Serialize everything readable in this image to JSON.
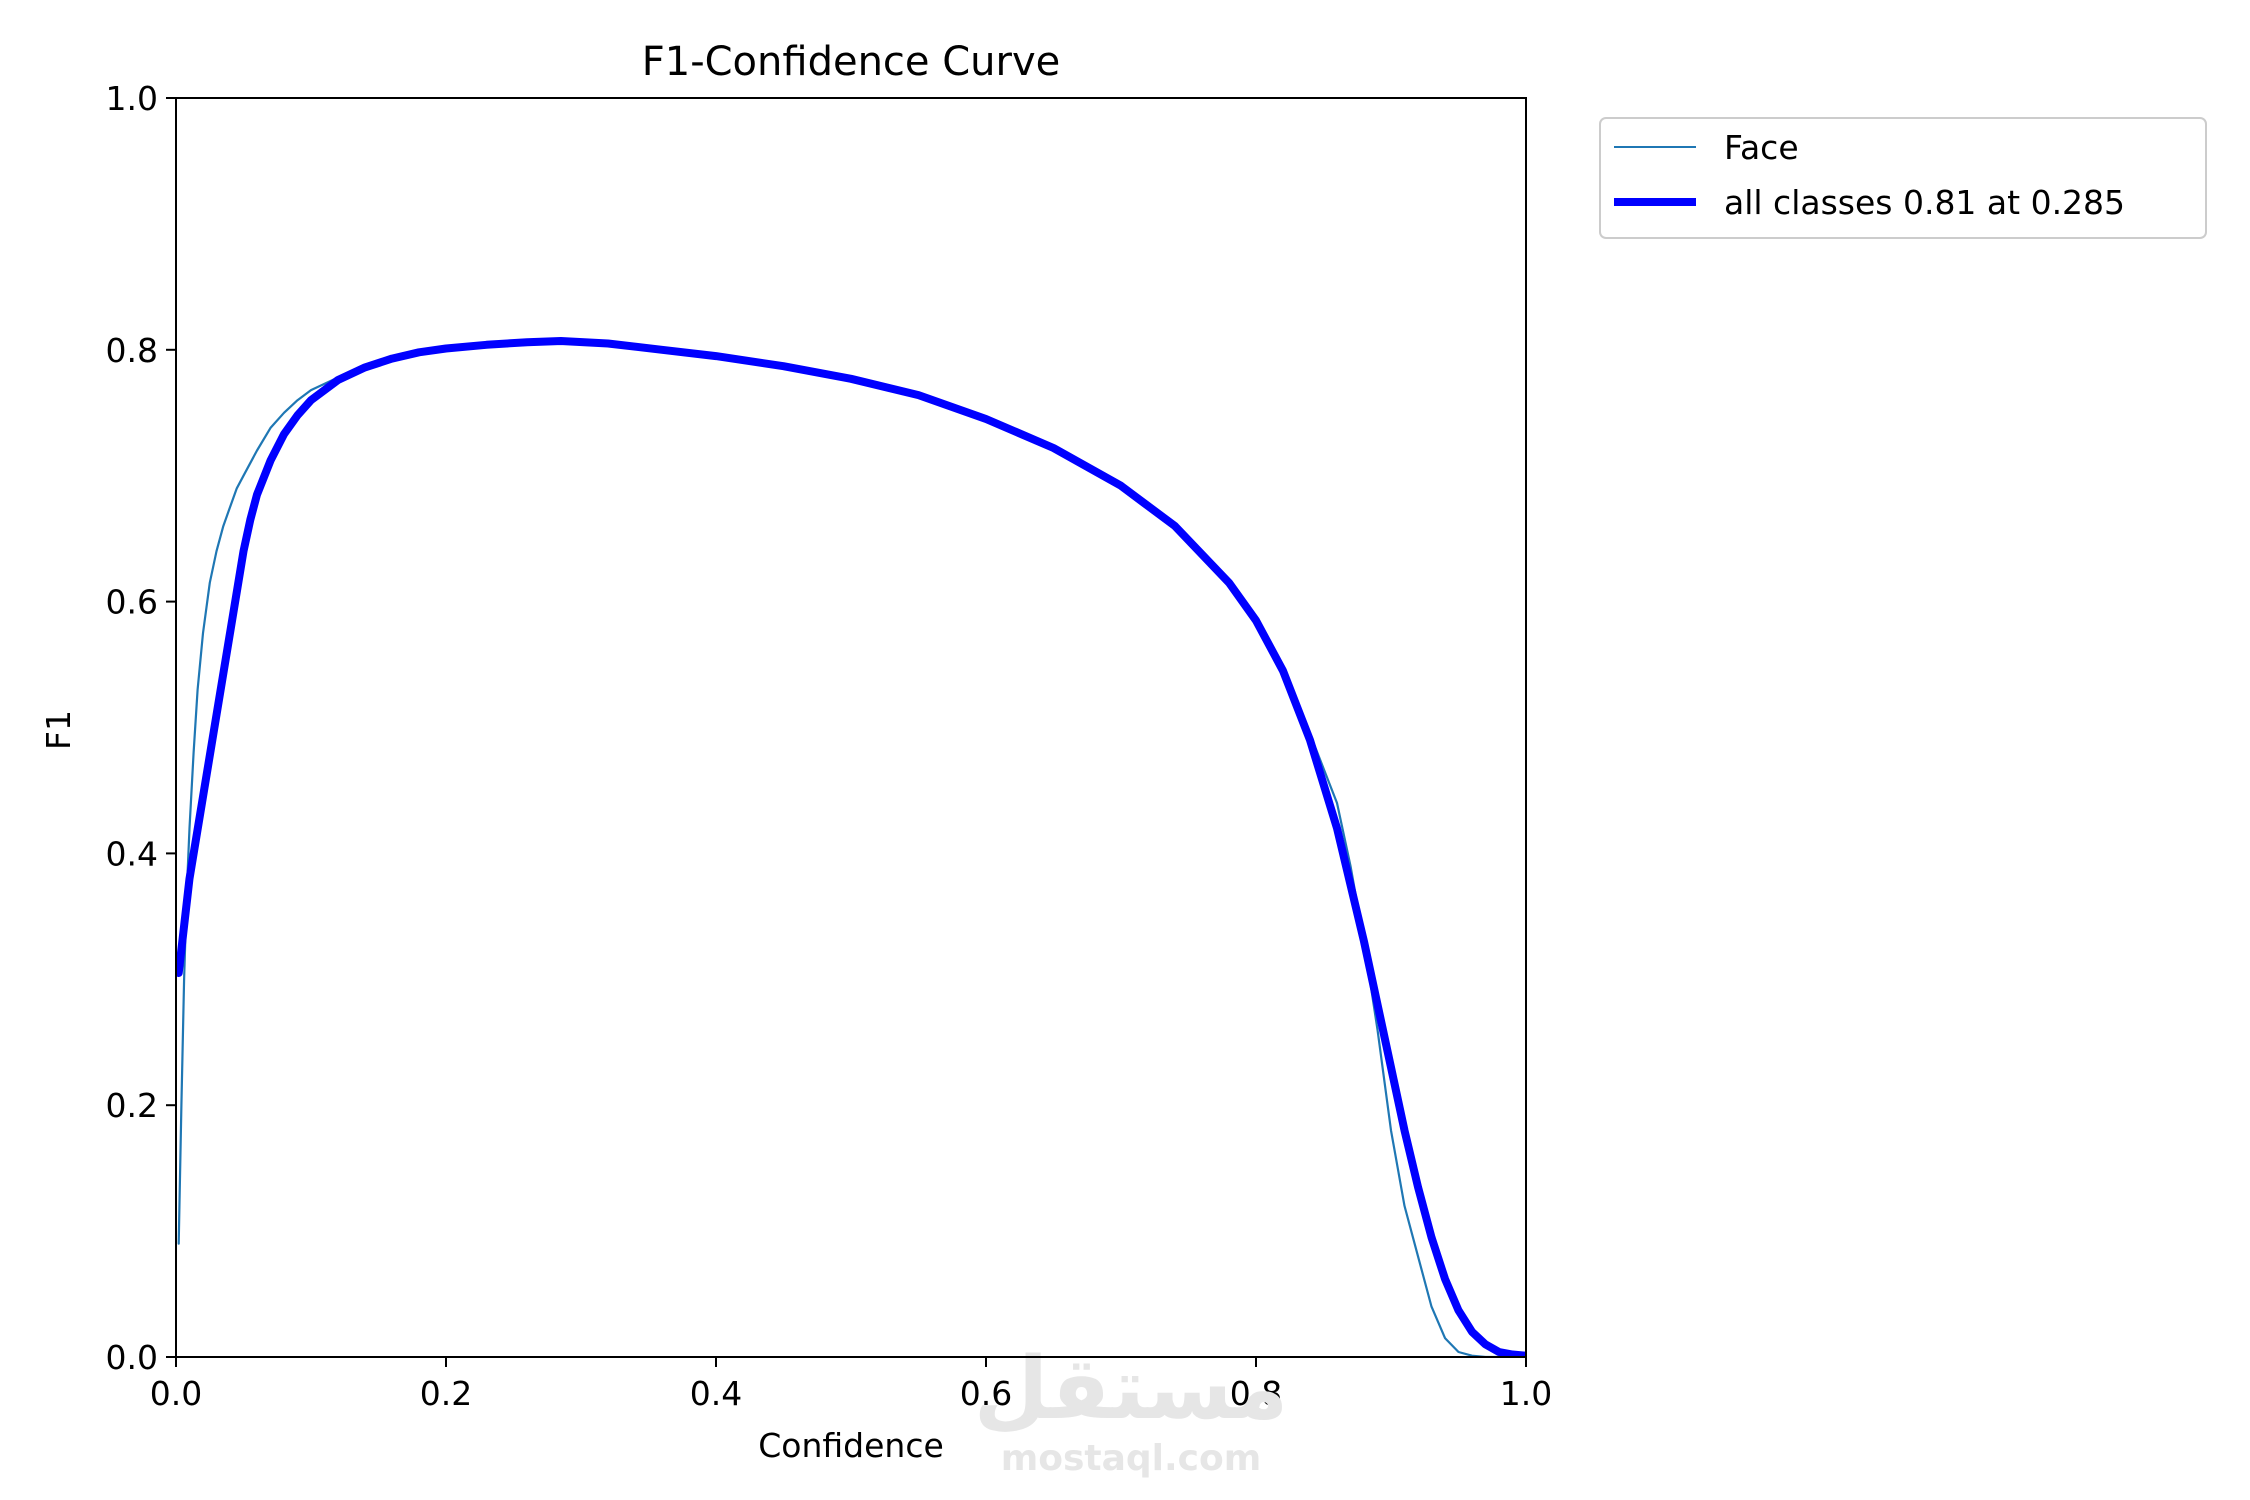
{
  "chart_data": {
    "type": "line",
    "title": "F1-Confidence Curve",
    "xlabel": "Confidence",
    "ylabel": "F1",
    "xlim": [
      0.0,
      1.0
    ],
    "ylim": [
      0.0,
      1.0
    ],
    "xticks": [
      "0.0",
      "0.2",
      "0.4",
      "0.6",
      "0.8",
      "1.0"
    ],
    "yticks": [
      "0.0",
      "0.2",
      "0.4",
      "0.6",
      "0.8",
      "1.0"
    ],
    "grid": false,
    "legend_position": "outside-top-right",
    "series": [
      {
        "name": "Face",
        "color": "#1f77b4",
        "style": "thin",
        "x": [
          0.002,
          0.004,
          0.006,
          0.008,
          0.01,
          0.013,
          0.016,
          0.02,
          0.025,
          0.03,
          0.035,
          0.04,
          0.045,
          0.05,
          0.06,
          0.07,
          0.08,
          0.09,
          0.1,
          0.12,
          0.14,
          0.16,
          0.18,
          0.2,
          0.23,
          0.26,
          0.285,
          0.32,
          0.36,
          0.4,
          0.45,
          0.5,
          0.55,
          0.6,
          0.65,
          0.7,
          0.74,
          0.78,
          0.8,
          0.82,
          0.84,
          0.86,
          0.87,
          0.88,
          0.89,
          0.9,
          0.91,
          0.92,
          0.93,
          0.94,
          0.95,
          0.96,
          0.97,
          0.98,
          0.99,
          1.0
        ],
        "y": [
          0.09,
          0.2,
          0.3,
          0.37,
          0.42,
          0.48,
          0.53,
          0.575,
          0.615,
          0.64,
          0.66,
          0.675,
          0.69,
          0.7,
          0.72,
          0.738,
          0.75,
          0.76,
          0.768,
          0.778,
          0.787,
          0.794,
          0.798,
          0.801,
          0.804,
          0.806,
          0.807,
          0.805,
          0.8,
          0.795,
          0.787,
          0.777,
          0.764,
          0.745,
          0.722,
          0.692,
          0.66,
          0.615,
          0.585,
          0.545,
          0.495,
          0.44,
          0.39,
          0.33,
          0.26,
          0.18,
          0.12,
          0.08,
          0.04,
          0.015,
          0.004,
          0.001,
          0.0,
          0.0,
          0.0,
          0.0
        ]
      },
      {
        "name": "all classes 0.81 at 0.285",
        "color": "#0000ff",
        "style": "thick",
        "x": [
          0.002,
          0.01,
          0.02,
          0.03,
          0.04,
          0.05,
          0.055,
          0.06,
          0.07,
          0.08,
          0.09,
          0.1,
          0.12,
          0.14,
          0.16,
          0.18,
          0.2,
          0.23,
          0.26,
          0.285,
          0.32,
          0.36,
          0.4,
          0.45,
          0.5,
          0.55,
          0.6,
          0.65,
          0.7,
          0.74,
          0.78,
          0.8,
          0.82,
          0.84,
          0.86,
          0.88,
          0.9,
          0.91,
          0.92,
          0.93,
          0.94,
          0.95,
          0.96,
          0.97,
          0.98,
          0.99,
          1.0
        ],
        "y": [
          0.305,
          0.38,
          0.445,
          0.51,
          0.575,
          0.64,
          0.665,
          0.685,
          0.712,
          0.733,
          0.748,
          0.76,
          0.776,
          0.786,
          0.793,
          0.798,
          0.801,
          0.804,
          0.806,
          0.807,
          0.805,
          0.8,
          0.795,
          0.787,
          0.777,
          0.764,
          0.745,
          0.722,
          0.692,
          0.66,
          0.615,
          0.585,
          0.545,
          0.49,
          0.42,
          0.33,
          0.23,
          0.18,
          0.135,
          0.095,
          0.062,
          0.037,
          0.02,
          0.01,
          0.004,
          0.002,
          0.001
        ]
      }
    ]
  },
  "watermark": {
    "arabic": "مستقل",
    "latin": "mostaql.com"
  }
}
